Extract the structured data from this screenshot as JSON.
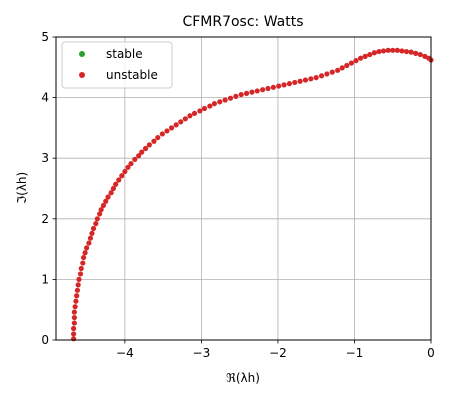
{
  "chart_data": {
    "type": "scatter",
    "title": "CFMR7osc: Watts",
    "xlabel": "ℜ(λh)",
    "ylabel": "ℑ(λh)",
    "xlim": [
      -4.9,
      0
    ],
    "ylim": [
      0,
      5
    ],
    "xticks": [
      -4,
      -3,
      -2,
      -1,
      0
    ],
    "yticks": [
      0,
      1,
      2,
      3,
      4,
      5
    ],
    "xtick_labels": [
      "−4",
      "−3",
      "−2",
      "−1",
      "0"
    ],
    "ytick_labels": [
      "0",
      "1",
      "2",
      "3",
      "4",
      "5"
    ],
    "grid": true,
    "legend": {
      "position": "upper-left",
      "entries": [
        "stable",
        "unstable"
      ]
    },
    "colors": {
      "stable": "#2ca02c",
      "unstable": "#d62728"
    },
    "series": [
      {
        "name": "stable",
        "x": [],
        "y": []
      },
      {
        "name": "unstable",
        "x": [
          -4.67,
          -4.67,
          -4.67,
          -4.66,
          -4.66,
          -4.66,
          -4.65,
          -4.64,
          -4.63,
          -4.62,
          -4.61,
          -4.6,
          -4.58,
          -4.57,
          -4.55,
          -4.54,
          -4.52,
          -4.5,
          -4.47,
          -4.45,
          -4.43,
          -4.41,
          -4.38,
          -4.36,
          -4.33,
          -4.31,
          -4.28,
          -4.25,
          -4.22,
          -4.18,
          -4.15,
          -4.12,
          -4.08,
          -4.04,
          -4.0,
          -3.96,
          -3.92,
          -3.87,
          -3.82,
          -3.78,
          -3.73,
          -3.68,
          -3.62,
          -3.57,
          -3.51,
          -3.45,
          -3.39,
          -3.33,
          -3.27,
          -3.21,
          -3.15,
          -3.09,
          -3.02,
          -2.96,
          -2.89,
          -2.83,
          -2.76,
          -2.69,
          -2.62,
          -2.55,
          -2.48,
          -2.41,
          -2.34,
          -2.27,
          -2.2,
          -2.13,
          -2.06,
          -1.99,
          -1.92,
          -1.85,
          -1.78,
          -1.71,
          -1.64,
          -1.57,
          -1.5,
          -1.43,
          -1.36,
          -1.29,
          -1.22,
          -1.16,
          -1.1,
          -1.04,
          -0.98,
          -0.92,
          -0.86,
          -0.8,
          -0.74,
          -0.68,
          -0.62,
          -0.56,
          -0.5,
          -0.44,
          -0.38,
          -0.32,
          -0.26,
          -0.2,
          -0.14,
          -0.08,
          -0.03,
          0.0
        ],
        "y": [
          0.02,
          0.1,
          0.19,
          0.28,
          0.37,
          0.46,
          0.55,
          0.64,
          0.73,
          0.82,
          0.91,
          1.0,
          1.09,
          1.18,
          1.27,
          1.36,
          1.44,
          1.52,
          1.6,
          1.68,
          1.76,
          1.84,
          1.92,
          2.0,
          2.08,
          2.15,
          2.22,
          2.29,
          2.36,
          2.43,
          2.5,
          2.57,
          2.64,
          2.71,
          2.78,
          2.85,
          2.91,
          2.98,
          3.04,
          3.1,
          3.16,
          3.22,
          3.28,
          3.34,
          3.4,
          3.45,
          3.5,
          3.55,
          3.6,
          3.65,
          3.7,
          3.74,
          3.78,
          3.82,
          3.86,
          3.9,
          3.93,
          3.96,
          3.99,
          4.02,
          4.05,
          4.07,
          4.09,
          4.11,
          4.13,
          4.15,
          4.17,
          4.19,
          4.21,
          4.23,
          4.25,
          4.27,
          4.29,
          4.31,
          4.33,
          4.36,
          4.39,
          4.42,
          4.45,
          4.49,
          4.53,
          4.57,
          4.61,
          4.65,
          4.68,
          4.71,
          4.74,
          4.76,
          4.77,
          4.78,
          4.78,
          4.78,
          4.77,
          4.76,
          4.75,
          4.73,
          4.71,
          4.68,
          4.65,
          4.62
        ]
      }
    ]
  }
}
